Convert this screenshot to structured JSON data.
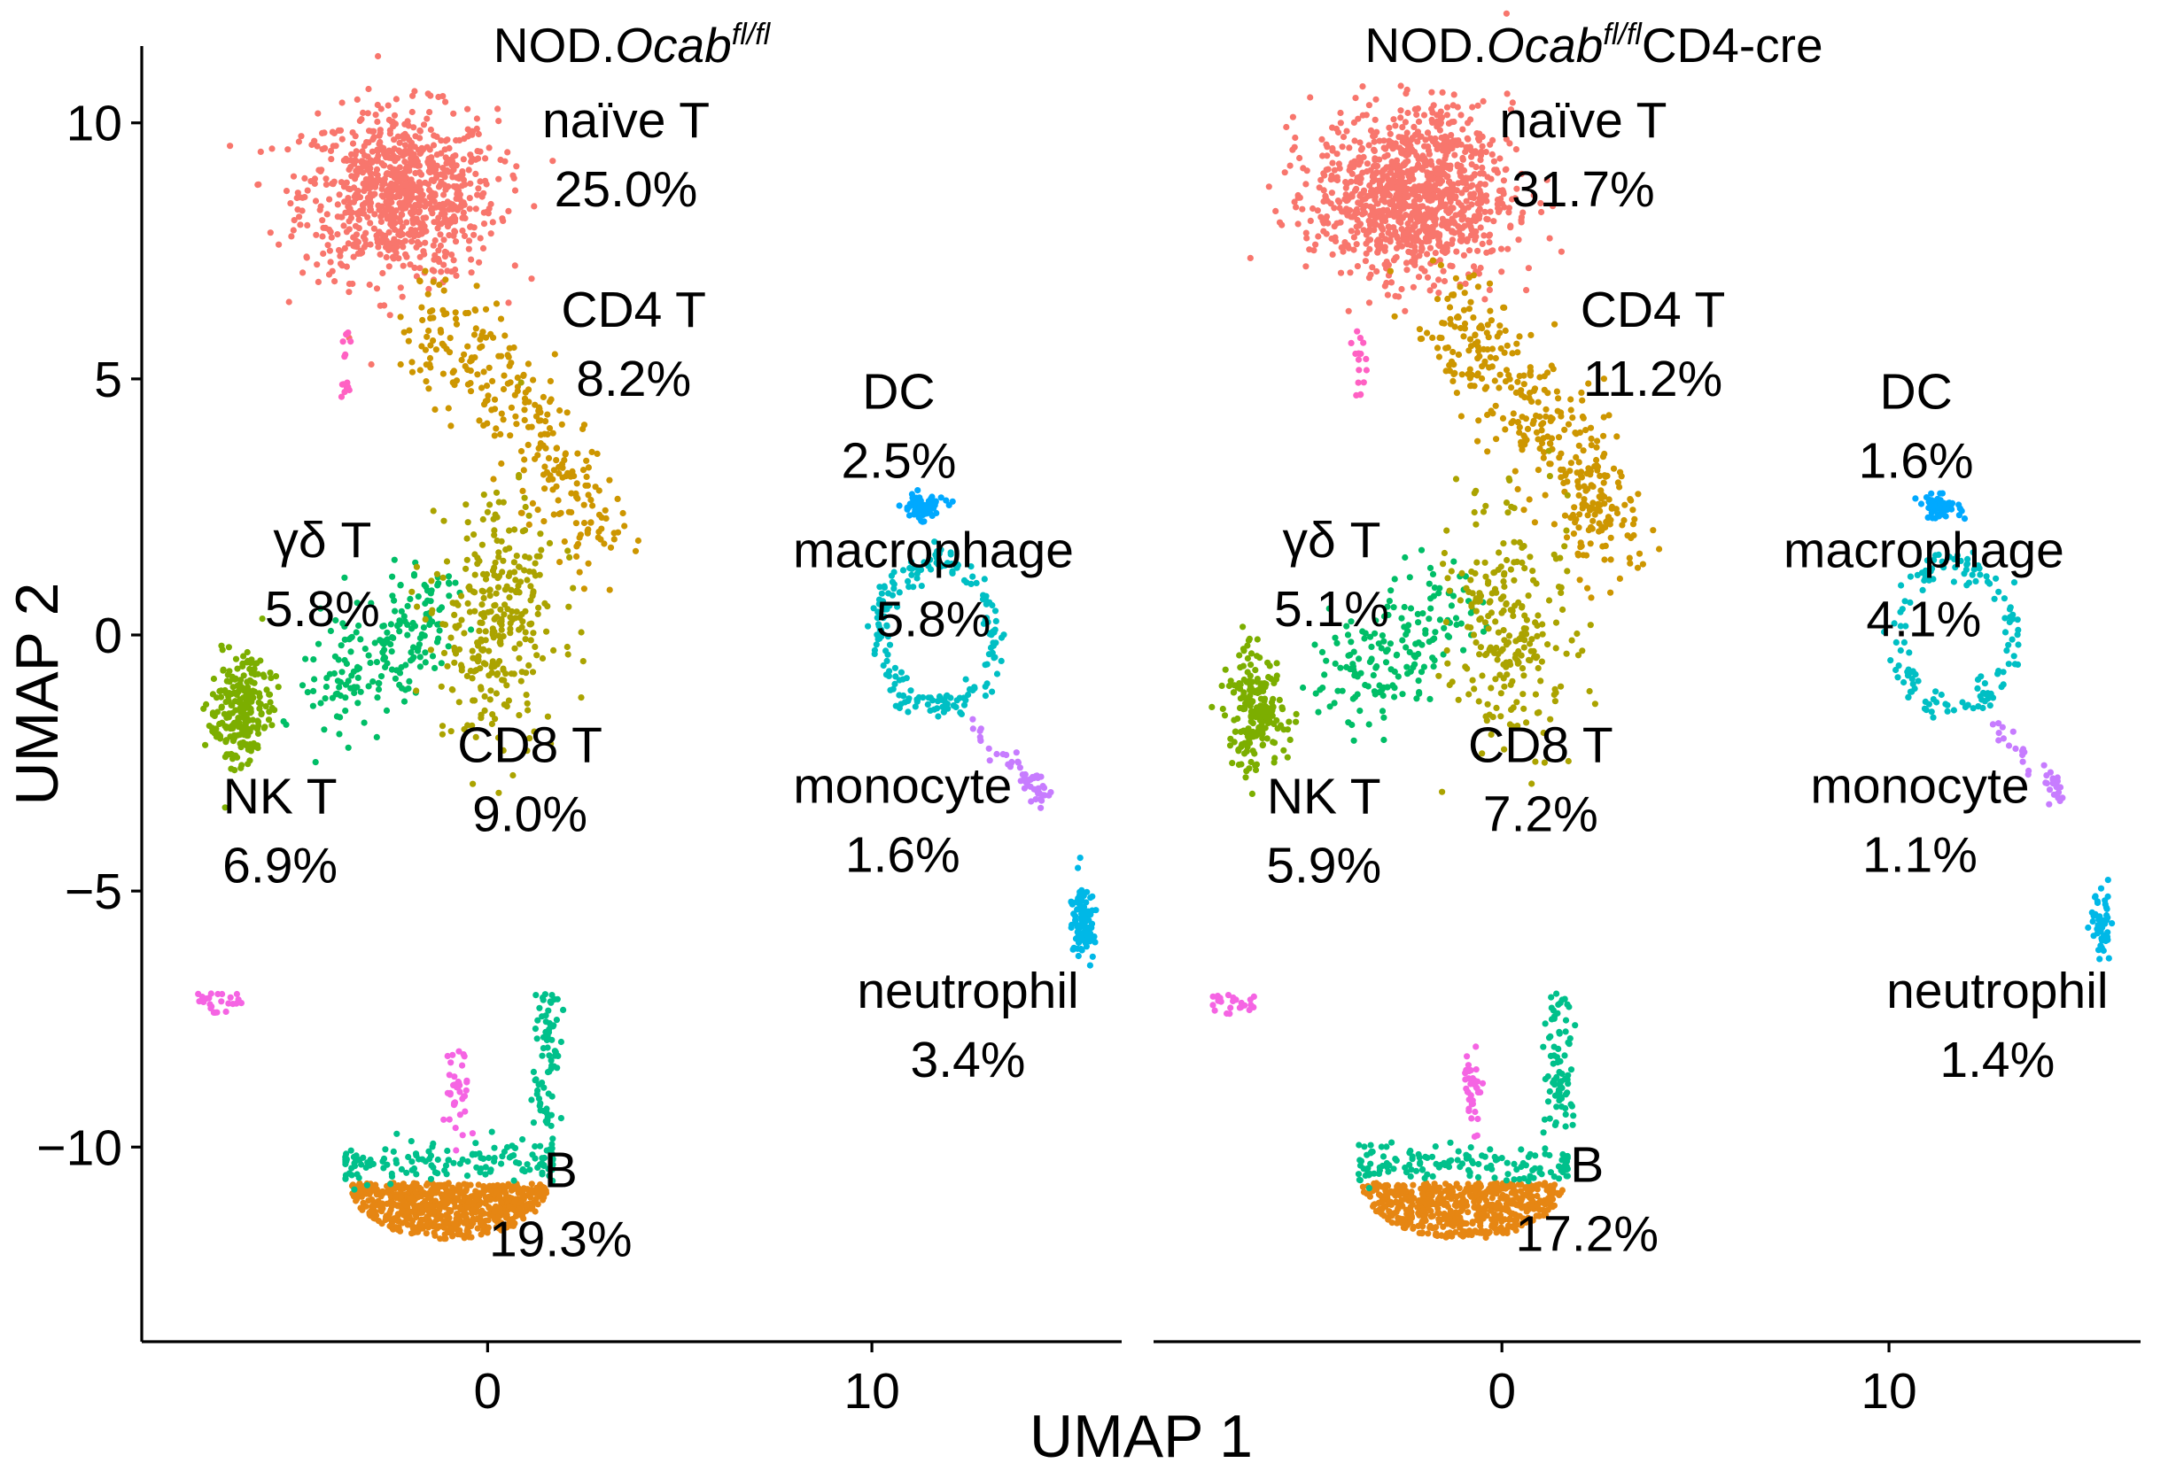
{
  "chart_data": {
    "type": "scatter",
    "xlabel": "UMAP_1",
    "ylabel": "UMAP_2",
    "xlim": [
      -9,
      16.5
    ],
    "ylim": [
      -13.8,
      11.5
    ],
    "x_ticks": [
      "0",
      "10"
    ],
    "y_ticks": [
      "10",
      "5",
      "0",
      "−5",
      "−10"
    ],
    "x_tick_values": [
      0,
      10
    ],
    "y_tick_values": [
      10,
      5,
      0,
      -5,
      -10
    ],
    "panels": [
      {
        "title_prefix": "NOD.",
        "title_italic": "Ocab",
        "title_sup": "fl/fl",
        "title_suffix": "",
        "clusters": [
          {
            "name": "naïve T",
            "percent": "25.0%",
            "color": "#F8766D",
            "label_at": [
              3.6,
              9.2
            ]
          },
          {
            "name": "CD4 T",
            "percent": "8.2%",
            "color": "#CD9600",
            "label_at": [
              3.8,
              5.5
            ]
          },
          {
            "name": "DC",
            "percent": "2.5%",
            "color": "#00A9FF",
            "label_at": [
              10.7,
              3.9
            ]
          },
          {
            "name": "γδ T",
            "percent": "5.8%",
            "color": "#00BE67",
            "label_at": [
              -4.3,
              1.0
            ]
          },
          {
            "name": "macrophage",
            "percent": "5.8%",
            "color": "#00BFC4",
            "label_at": [
              11.6,
              0.8
            ]
          },
          {
            "name": "CD8 T",
            "percent": "9.0%",
            "color": "#ABA300",
            "label_at": [
              1.1,
              -3.0
            ]
          },
          {
            "name": "NK T",
            "percent": "6.9%",
            "color": "#7CAE00",
            "label_at": [
              -5.4,
              -4.0
            ]
          },
          {
            "name": "monocyte",
            "percent": "1.6%",
            "color": "#C77CFF",
            "label_at": [
              10.8,
              -3.8
            ]
          },
          {
            "name": "neutrophil",
            "percent": "3.4%",
            "color": "#00B8E7",
            "label_at": [
              12.5,
              -7.8
            ]
          },
          {
            "name": "B",
            "percent": "19.3%",
            "color": "#E68613",
            "label_at": [
              1.9,
              -11.3
            ]
          }
        ]
      },
      {
        "title_prefix": "NOD.",
        "title_italic": "Ocab",
        "title_sup": "fl/fl",
        "title_suffix": "CD4-cre",
        "clusters": [
          {
            "name": "naïve T",
            "percent": "31.7%",
            "color": "#F8766D",
            "label_at": [
              2.1,
              9.2
            ]
          },
          {
            "name": "CD4 T",
            "percent": "11.2%",
            "color": "#CD9600",
            "label_at": [
              3.9,
              5.5
            ]
          },
          {
            "name": "DC",
            "percent": "1.6%",
            "color": "#00A9FF",
            "label_at": [
              10.7,
              3.9
            ]
          },
          {
            "name": "γδ T",
            "percent": "5.1%",
            "color": "#00BE67",
            "label_at": [
              -4.4,
              1.0
            ]
          },
          {
            "name": "macrophage",
            "percent": "4.1%",
            "color": "#00BFC4",
            "label_at": [
              10.9,
              0.8
            ]
          },
          {
            "name": "CD8 T",
            "percent": "7.2%",
            "color": "#ABA300",
            "label_at": [
              1.0,
              -3.0
            ]
          },
          {
            "name": "NK T",
            "percent": "5.9%",
            "color": "#7CAE00",
            "label_at": [
              -4.6,
              -4.0
            ]
          },
          {
            "name": "monocyte",
            "percent": "1.1%",
            "color": "#C77CFF",
            "label_at": [
              10.8,
              -3.8
            ]
          },
          {
            "name": "neutrophil",
            "percent": "1.4%",
            "color": "#00B8E7",
            "label_at": [
              12.8,
              -7.8
            ]
          },
          {
            "name": "B",
            "percent": "17.2%",
            "color": "#E68613",
            "label_at": [
              2.2,
              -11.2
            ]
          }
        ]
      }
    ],
    "decorative_colors": {
      "b_aux": "#00C08B",
      "misc_pink": "#F564E3",
      "pdc_pink": "#FF61C3"
    }
  }
}
